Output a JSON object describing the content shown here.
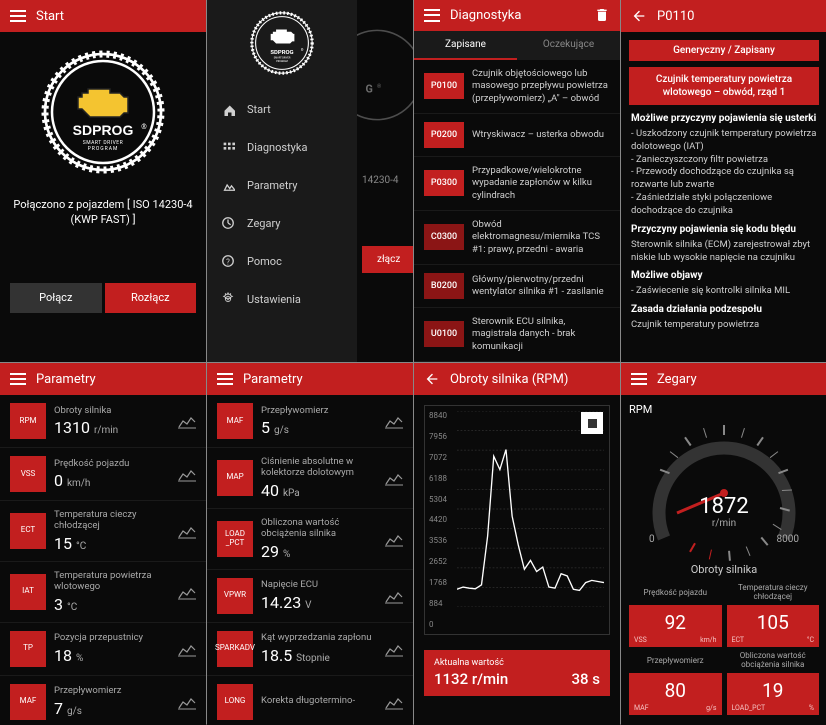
{
  "colors": {
    "red": "#c21f1f",
    "darkred": "#8b1515",
    "bg": "#0a0a0a",
    "panel": "#1a1a1a"
  },
  "s1": {
    "title": "Start",
    "brand": "SDPROG",
    "tagline": "SMART DRIVER PROGRAM",
    "conn_text": "Połączono z pojazdem [ ISO 14230-4 (KWP FAST) ]",
    "btn_connect": "Połącz",
    "btn_disconnect": "Rozłącz"
  },
  "s2": {
    "items": [
      {
        "label": "Start"
      },
      {
        "label": "Diagnostyka"
      },
      {
        "label": "Parametry"
      },
      {
        "label": "Zegary"
      },
      {
        "label": "Pomoc"
      },
      {
        "label": "Ustawienia"
      }
    ],
    "bg_text": "14230-4",
    "bg_btn": "złącz"
  },
  "s3": {
    "title": "Diagnostyka",
    "tab_saved": "Zapisane",
    "tab_pending": "Oczekujące",
    "codes": [
      {
        "code": "P0100",
        "cls": "dtc-red",
        "desc": "Czujnik objętościowego lub masowego przepływu powietrza (przepływomierz) „A\" – obwód"
      },
      {
        "code": "P0200",
        "cls": "dtc-red",
        "desc": "Wtryskiwacz – usterka obwodu"
      },
      {
        "code": "P0300",
        "cls": "dtc-red",
        "desc": "Przypadkowe/wielokrotne wypadanie zapłonów w kilku cylindrach"
      },
      {
        "code": "C0300",
        "cls": "dtc-dark",
        "desc": "Obwód elektromagnesu/miernika TCS #1: prawy, przedni - awaria"
      },
      {
        "code": "B0200",
        "cls": "dtc-dark",
        "desc": "Główny/pierwotny/przedni wentylator silnika #1 - zasilanie"
      },
      {
        "code": "U0100",
        "cls": "dtc-dark",
        "desc": "Sterownik ECU silnika, magistrala danych - brak komunikacji"
      }
    ]
  },
  "s4": {
    "title": "P0110",
    "pill1": "Generyczny / Zapisany",
    "pill2": "Czujnik temperatury powietrza wlotowego – obwód, rząd 1",
    "h1": "Możliwe przyczyny pojawienia się usterki",
    "t1": "- Uszkodzony czujnik temperatury powietrza dolotowego (IAT)\n- Zanieczyszczony filtr powietrza\n- Przewody dochodzące do czujnika są rozwarte lub zwarte\n- Zaśniedziałe styki połączeniowe dochodzące do czujnika",
    "h2": "Przyczyny pojawienia się kodu błędu",
    "t2": "Sterownik silnika (ECM) zarejestrował zbyt niskie lub wysokie napięcie na czujniku",
    "h3": "Możliwe objawy",
    "t3": "- Zaświecenie się kontrolki silnika MIL",
    "h4": "Zasada działania podzespołu",
    "t4": "Czujnik temperatury powietrza"
  },
  "s5": {
    "title": "Parametry",
    "items": [
      {
        "code": "RPM",
        "label": "Obroty silnika",
        "value": "1310",
        "unit": "r/min"
      },
      {
        "code": "VSS",
        "label": "Prędkość pojazdu",
        "value": "0",
        "unit": "km/h"
      },
      {
        "code": "ECT",
        "label": "Temperatura cieczy chłodzącej",
        "value": "15",
        "unit": "°C"
      },
      {
        "code": "IAT",
        "label": "Temperatura powietrza wlotowego",
        "value": "3",
        "unit": "°C"
      },
      {
        "code": "TP",
        "label": "Pozycja przepustnicy",
        "value": "18",
        "unit": "%"
      },
      {
        "code": "MAF",
        "label": "Przepływomierz",
        "value": "7",
        "unit": "g/s"
      }
    ]
  },
  "s6": {
    "title": "Parametry",
    "items": [
      {
        "code": "MAF",
        "label": "Przepływomierz",
        "value": "5",
        "unit": "g/s"
      },
      {
        "code": "MAP",
        "label": "Ciśnienie absolutne w kolektorze dolotowym",
        "value": "40",
        "unit": "kPa"
      },
      {
        "code": "LOAD_PCT",
        "label": "Obliczona wartość obciążenia silnika",
        "value": "29",
        "unit": "%"
      },
      {
        "code": "VPWR",
        "label": "Napięcie ECU",
        "value": "14.23",
        "unit": "V"
      },
      {
        "code": "SPARKADV",
        "label": "Kąt wyprzedzania zapłonu",
        "value": "18.5",
        "unit": "Stopnie"
      },
      {
        "code": "LONG",
        "label": "Korekta długotermino-",
        "value": "",
        "unit": ""
      }
    ]
  },
  "s7": {
    "title": "Obroty silnika (RPM)",
    "ylabels": [
      "8840",
      "7956",
      "7072",
      "6188",
      "5304",
      "4420",
      "3536",
      "2652",
      "1768",
      "884",
      "0"
    ],
    "series": [
      800,
      900,
      850,
      820,
      1000,
      3200,
      6800,
      6200,
      7100,
      4100,
      2800,
      1700,
      2100,
      1600,
      1800,
      900,
      850,
      1500,
      1400,
      800,
      750,
      1100,
      1200,
      1150,
      1100
    ],
    "ymax": 8840,
    "footer_label": "Aktualna wartość",
    "footer_value": "1132 r/min",
    "footer_time": "38 s"
  },
  "s8": {
    "title": "Zegary",
    "gauge_param": "RPM",
    "gauge_value": "1872",
    "gauge_unit": "r/min",
    "gauge_min": "0",
    "gauge_max": "8000",
    "gauge_label": "Obroty silnika",
    "cells": [
      {
        "label": "Prędkość pojazdu",
        "value": "92",
        "code": "VSS",
        "unit": "km/h"
      },
      {
        "label": "Temperatura cieczy chłodzącej",
        "value": "105",
        "code": "ECT",
        "unit": "°C"
      },
      {
        "label": "Przepływomierz",
        "value": "80",
        "code": "MAF",
        "unit": "g/s"
      },
      {
        "label": "Obliczona wartość obciążenia silnika",
        "value": "19",
        "code": "LOAD_PCT",
        "unit": "%"
      }
    ]
  }
}
